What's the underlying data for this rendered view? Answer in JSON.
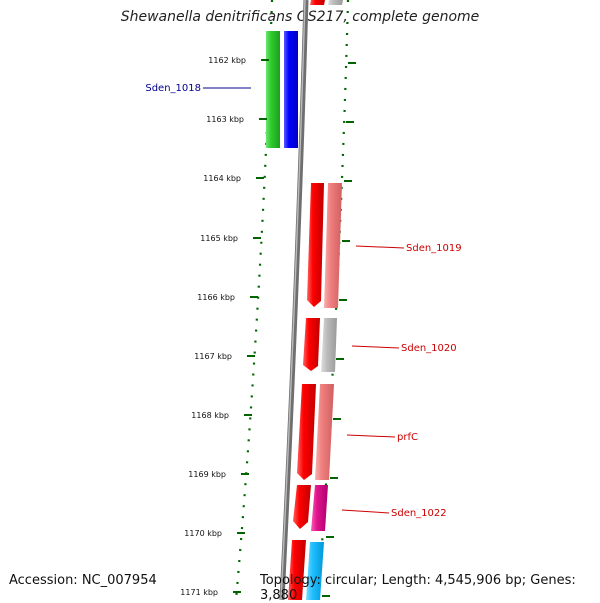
{
  "title": "Shewanella denitrificans OS217, complete genome",
  "footer": {
    "accession": "Accession: NC_007954",
    "topology": "Topology: circular; Length: 4,545,906 bp; Genes: 3,880"
  },
  "ticks": [
    "1162 kbp",
    "1163 kbp",
    "1164 kbp",
    "1165 kbp",
    "1166 kbp",
    "1167 kbp",
    "1168 kbp",
    "1169 kbp",
    "1170 kbp",
    "1171 kbp"
  ],
  "genes": {
    "sden1018": "Sden_1018",
    "sden1019": "Sden_1019",
    "sden1020": "Sden_1020",
    "prfC": "prfC",
    "sden1022": "Sden_1022"
  },
  "colors": {
    "label_blue": "#00008b",
    "label_red": "#cc0000",
    "tick_green": "#006400",
    "backbone": "#808080"
  }
}
